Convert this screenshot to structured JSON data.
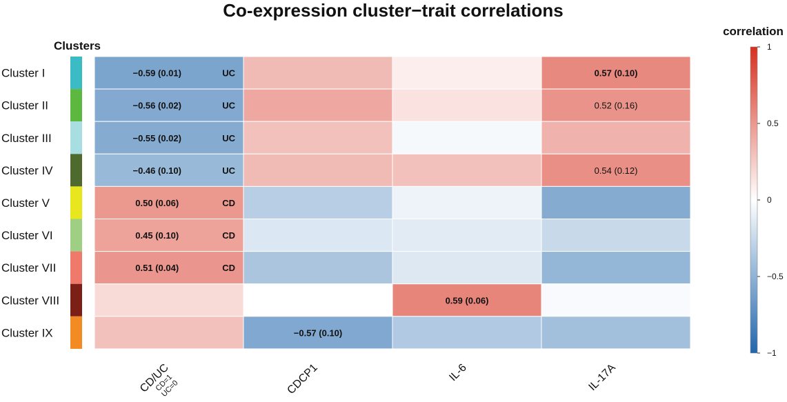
{
  "chart_data": {
    "type": "heatmap",
    "title": "Co-expression cluster−trait correlations",
    "row_header": "Clusters",
    "rows": [
      "Cluster I",
      "Cluster II",
      "Cluster III",
      "Cluster IV",
      "Cluster V",
      "Cluster VI",
      "Cluster VII",
      "Cluster VIII",
      "Cluster IX"
    ],
    "row_colors": [
      "#3bbcc4",
      "#5db83f",
      "#a8dde2",
      "#4f6a2f",
      "#e8e61c",
      "#9fcf83",
      "#ef7a6c",
      "#7c1f16",
      "#f28b23"
    ],
    "columns": [
      "CD/UC",
      "CDCP1",
      "IL-6",
      "IL-17A"
    ],
    "column_sublabels": {
      "CD/UC": [
        "CD=1",
        "UC=0"
      ]
    },
    "values": [
      [
        -0.59,
        0.33,
        0.08,
        0.57
      ],
      [
        -0.56,
        0.42,
        0.14,
        0.52
      ],
      [
        -0.55,
        0.3,
        -0.04,
        0.37
      ],
      [
        -0.46,
        0.33,
        0.3,
        0.54
      ],
      [
        0.5,
        -0.32,
        -0.08,
        -0.55
      ],
      [
        0.45,
        -0.16,
        -0.13,
        -0.25
      ],
      [
        0.51,
        -0.38,
        -0.15,
        -0.48
      ],
      [
        0.18,
        0.0,
        0.59,
        -0.03
      ],
      [
        0.3,
        -0.57,
        -0.35,
        -0.42
      ]
    ],
    "annotations": [
      {
        "row": 0,
        "col": 0,
        "text": "−0.59 (0.01)",
        "bold": true
      },
      {
        "row": 1,
        "col": 0,
        "text": "−0.56 (0.02)",
        "bold": true
      },
      {
        "row": 2,
        "col": 0,
        "text": "−0.55 (0.02)",
        "bold": true
      },
      {
        "row": 3,
        "col": 0,
        "text": "−0.46 (0.10)",
        "bold": true
      },
      {
        "row": 4,
        "col": 0,
        "text": "0.50 (0.06)",
        "bold": true
      },
      {
        "row": 5,
        "col": 0,
        "text": "0.45 (0.10)",
        "bold": true
      },
      {
        "row": 6,
        "col": 0,
        "text": "0.51 (0.04)",
        "bold": true
      },
      {
        "row": 0,
        "col": 3,
        "text": "0.57 (0.10)",
        "bold": true
      },
      {
        "row": 1,
        "col": 3,
        "text": "0.52 (0.16)",
        "bold": false
      },
      {
        "row": 3,
        "col": 3,
        "text": "0.54 (0.12)",
        "bold": false
      },
      {
        "row": 7,
        "col": 2,
        "text": "0.59 (0.06)",
        "bold": true
      },
      {
        "row": 8,
        "col": 1,
        "text": "−0.57 (0.10)",
        "bold": true
      }
    ],
    "group_labels": [
      {
        "row": 0,
        "text": "UC"
      },
      {
        "row": 1,
        "text": "UC"
      },
      {
        "row": 2,
        "text": "UC"
      },
      {
        "row": 3,
        "text": "UC"
      },
      {
        "row": 4,
        "text": "CD"
      },
      {
        "row": 5,
        "text": "CD"
      },
      {
        "row": 6,
        "text": "CD"
      }
    ],
    "legend": {
      "title": "correlation",
      "range": [
        -1,
        1
      ],
      "ticks": [
        "1",
        "0.5",
        "0",
        "−0.5",
        "−1"
      ],
      "tick_values": [
        1,
        0.5,
        0,
        -0.5,
        -1
      ],
      "colors": {
        "negative": "#2166ac",
        "zero": "#ffffff",
        "positive": "#d6301f"
      }
    }
  }
}
